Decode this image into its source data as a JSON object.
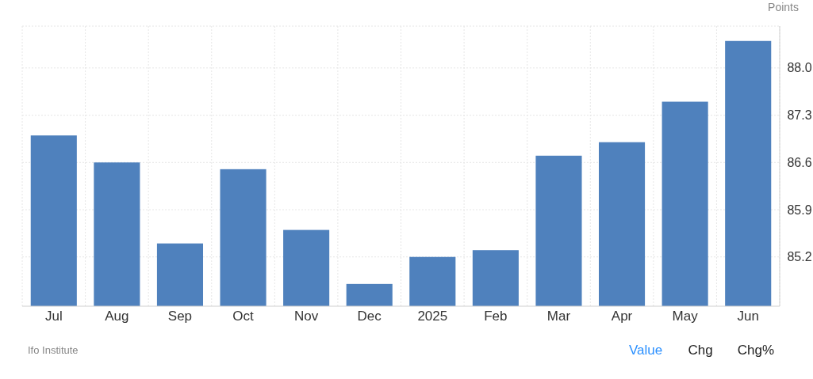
{
  "chart_data": {
    "type": "bar",
    "ylabel": "Points",
    "categories": [
      "Jul",
      "Aug",
      "Sep",
      "Oct",
      "Nov",
      "Dec",
      "2025",
      "Feb",
      "Mar",
      "Apr",
      "May",
      "Jun"
    ],
    "values": [
      87.0,
      86.6,
      85.4,
      86.5,
      85.6,
      84.8,
      85.2,
      85.3,
      86.7,
      86.9,
      87.5,
      88.4
    ],
    "color": "#4f81bd",
    "ylim": [
      84.47,
      88.62
    ],
    "yticks": [
      {
        "value": 85.2,
        "label": "85.2"
      },
      {
        "value": 85.9,
        "label": "85.9"
      },
      {
        "value": 86.6,
        "label": "86.6"
      },
      {
        "value": 87.3,
        "label": "87.3"
      },
      {
        "value": 88.0,
        "label": "88.0"
      }
    ],
    "grid": true,
    "annotations": [
      "Ifo Institute",
      "Value",
      "Chg",
      "Chg%"
    ]
  }
}
